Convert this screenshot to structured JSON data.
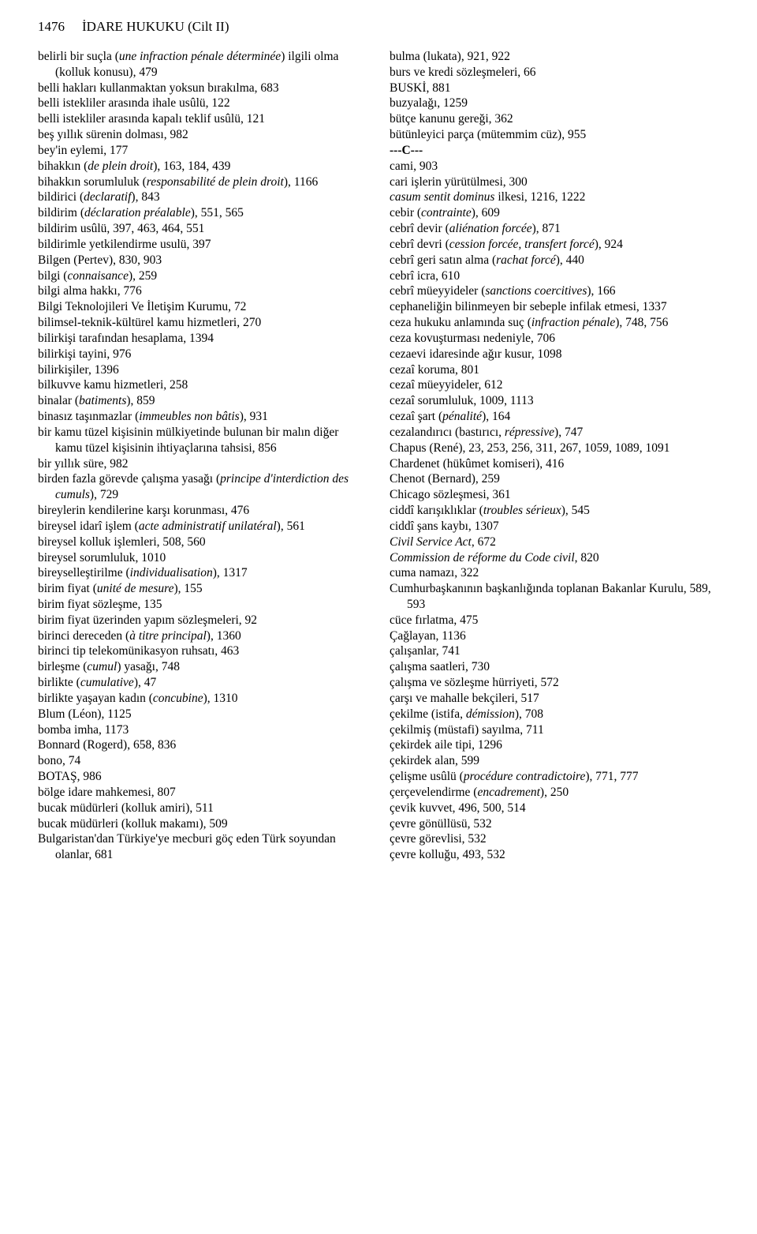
{
  "header": {
    "page_number": "1476",
    "title": "İDARE HUKUKU (Cilt II)"
  },
  "left_column": [
    {
      "html": "belirli bir suçla (<i>une infraction pénale déterminée</i>) ilgili olma (kolluk konusu), 479"
    },
    {
      "html": "belli hakları kullanmaktan yoksun bırakılma, 683"
    },
    {
      "html": "belli istekliler arasında ihale usûlü, 122"
    },
    {
      "html": "belli istekliler arasında kapalı teklif usûlü, 121"
    },
    {
      "html": "beş yıllık sürenin dolması, 982"
    },
    {
      "html": "bey'in eylemi, 177"
    },
    {
      "html": "bihakkın (<i>de plein droit</i>), 163, 184, 439"
    },
    {
      "html": "bihakkın sorumluluk (<i>responsabilité de plein droit</i>), 1166"
    },
    {
      "html": "bildirici (<i>declaratif</i>), 843"
    },
    {
      "html": "bildirim (<i>déclaration préalable</i>), 551, 565"
    },
    {
      "html": "bildirim usûlü, 397, 463, 464, 551"
    },
    {
      "html": "bildirimle yetkilendirme usulü, 397"
    },
    {
      "html": "Bilgen (Pertev), 830, 903"
    },
    {
      "html": "bilgi (<i>connaisance</i>), 259"
    },
    {
      "html": "bilgi alma hakkı, 776"
    },
    {
      "html": "Bilgi Teknolojileri Ve İletişim Kurumu, 72"
    },
    {
      "html": "bilimsel-teknik-kültürel kamu hizmetleri, 270"
    },
    {
      "html": "bilirkişi tarafından hesaplama, 1394"
    },
    {
      "html": "bilirkişi tayini, 976"
    },
    {
      "html": "bilirkişiler, 1396"
    },
    {
      "html": "bilkuvve kamu hizmetleri, 258"
    },
    {
      "html": "binalar (<i>batiments</i>), 859"
    },
    {
      "html": "binasız taşınmazlar (<i>immeubles non bâtis</i>), 931"
    },
    {
      "html": "bir kamu tüzel kişisinin mülkiyetinde bulunan bir malın diğer kamu tüzel kişisinin ihtiyaçlarına tahsisi, 856"
    },
    {
      "html": "bir yıllık süre, 982"
    },
    {
      "html": "birden fazla görevde çalışma yasağı (<i>principe d'interdiction des cumuls</i>), 729"
    },
    {
      "html": "bireylerin kendilerine karşı korunması, 476"
    },
    {
      "html": "bireysel idarî işlem (<i>acte administratif unilatéral</i>), 561"
    },
    {
      "html": "bireysel kolluk işlemleri, 508, 560"
    },
    {
      "html": "bireysel sorumluluk, 1010"
    },
    {
      "html": "bireyselleştirilme (<i>individualisation</i>), 1317"
    },
    {
      "html": "birim fiyat (<i>unité de mesure</i>), 155"
    },
    {
      "html": "birim fiyat sözleşme, 135"
    },
    {
      "html": "birim fiyat üzerinden yapım sözleşmeleri, 92"
    },
    {
      "html": "birinci dereceden (<i>à titre principal</i>), 1360"
    },
    {
      "html": "birinci tip telekomünikasyon ruhsatı, 463"
    },
    {
      "html": "birleşme (<i>cumul</i>) yasağı, 748"
    },
    {
      "html": "birlikte (<i>cumulative</i>), 47"
    },
    {
      "html": "birlikte yaşayan kadın (<i>concubine</i>), 1310"
    },
    {
      "html": "Blum (Léon), 1125"
    },
    {
      "html": "bomba imha, 1173"
    },
    {
      "html": "Bonnard (Rogerd), 658, 836"
    },
    {
      "html": "bono, 74"
    },
    {
      "html": "BOTAŞ, 986"
    },
    {
      "html": "bölge idare mahkemesi, 807"
    },
    {
      "html": "bucak müdürleri (kolluk amiri), 511"
    },
    {
      "html": "bucak müdürleri (kolluk makamı), 509"
    },
    {
      "html": "Bulgaristan'dan Türkiye'ye mecburi göç eden Türk soyundan olanlar, 681"
    }
  ],
  "right_column": [
    {
      "html": "bulma (lukata), 921, 922"
    },
    {
      "html": "burs ve kredi sözleşmeleri, 66"
    },
    {
      "html": "BUSKİ, 881"
    },
    {
      "html": "buzyalağı, 1259"
    },
    {
      "html": "bütçe kanunu gereği, 362"
    },
    {
      "html": "bütünleyici parça (mütemmim cüz), 955"
    },
    {
      "section": true,
      "html": "---C---"
    },
    {
      "html": "cami, 903"
    },
    {
      "html": "cari işlerin yürütülmesi, 300"
    },
    {
      "html": "<i>casum sentit dominus</i> ilkesi, 1216, 1222"
    },
    {
      "html": "cebir (<i>contrainte</i>), 609"
    },
    {
      "html": "cebrî devir (<i>aliénation forcée</i>), 871"
    },
    {
      "html": "cebrî devri (<i>cession forcée, transfert forcé</i>), 924"
    },
    {
      "html": "cebrî geri satın alma (<i>rachat forcé</i>), 440"
    },
    {
      "html": "cebrî icra, 610"
    },
    {
      "html": "cebrî müeyyideler (<i>sanctions coercitives</i>), 166"
    },
    {
      "html": "cephaneliğin bilinmeyen bir sebeple infilak etmesi, 1337"
    },
    {
      "html": "ceza hukuku anlamında suç (<i>infraction pénale</i>), 748, 756"
    },
    {
      "html": "ceza kovuşturması nedeniyle, 706"
    },
    {
      "html": "cezaevi idaresinde ağır kusur, 1098"
    },
    {
      "html": "cezaî koruma, 801"
    },
    {
      "html": "cezaî müeyyideler, 612"
    },
    {
      "html": "cezaî sorumluluk, 1009, 1113"
    },
    {
      "html": "cezaî şart (<i>pénalité</i>), 164"
    },
    {
      "html": "cezalandırıcı (bastırıcı, <i>répressive</i>), 747"
    },
    {
      "html": "Chapus  (René), 23, 253, 256, 311, 267, 1059, 1089, 1091"
    },
    {
      "html": "Chardenet (hükûmet komiseri), 416"
    },
    {
      "html": "Chenot (Bernard), 259"
    },
    {
      "html": "Chicago sözleşmesi, 361"
    },
    {
      "html": "ciddî karışıklıklar (<i>troubles sérieux</i>), 545"
    },
    {
      "html": "ciddî şans kaybı, 1307"
    },
    {
      "html": "<i>Civil Service Act</i>, 672"
    },
    {
      "html": "<i>Commission de réforme du Code civil</i>, 820"
    },
    {
      "html": "cuma namazı, 322"
    },
    {
      "html": "Cumhurbaşkanının başkanlığında toplanan Bakanlar Kurulu, 589, 593"
    },
    {
      "html": "cüce fırlatma, 475"
    },
    {
      "html": "Çağlayan, 1136"
    },
    {
      "html": "çalışanlar, 741"
    },
    {
      "html": "çalışma saatleri, 730"
    },
    {
      "html": "çalışma ve sözleşme hürriyeti, 572"
    },
    {
      "html": "çarşı ve mahalle bekçileri, 517"
    },
    {
      "html": "çekilme (istifa, <i>démission</i>), 708"
    },
    {
      "html": "çekilmiş (müstafi) sayılma, 711"
    },
    {
      "html": "çekirdek aile tipi, 1296"
    },
    {
      "html": "çekirdek alan, 599"
    },
    {
      "html": "çelişme usûlü (<i>procédure contradictoire</i>), 771, 777"
    },
    {
      "html": "çerçevelendirme (<i>encadrement</i>), 250"
    },
    {
      "html": "çevik kuvvet, 496, 500, 514"
    },
    {
      "html": "çevre gönüllüsü, 532"
    },
    {
      "html": "çevre görevlisi, 532"
    },
    {
      "html": "çevre kolluğu, 493, 532"
    }
  ]
}
